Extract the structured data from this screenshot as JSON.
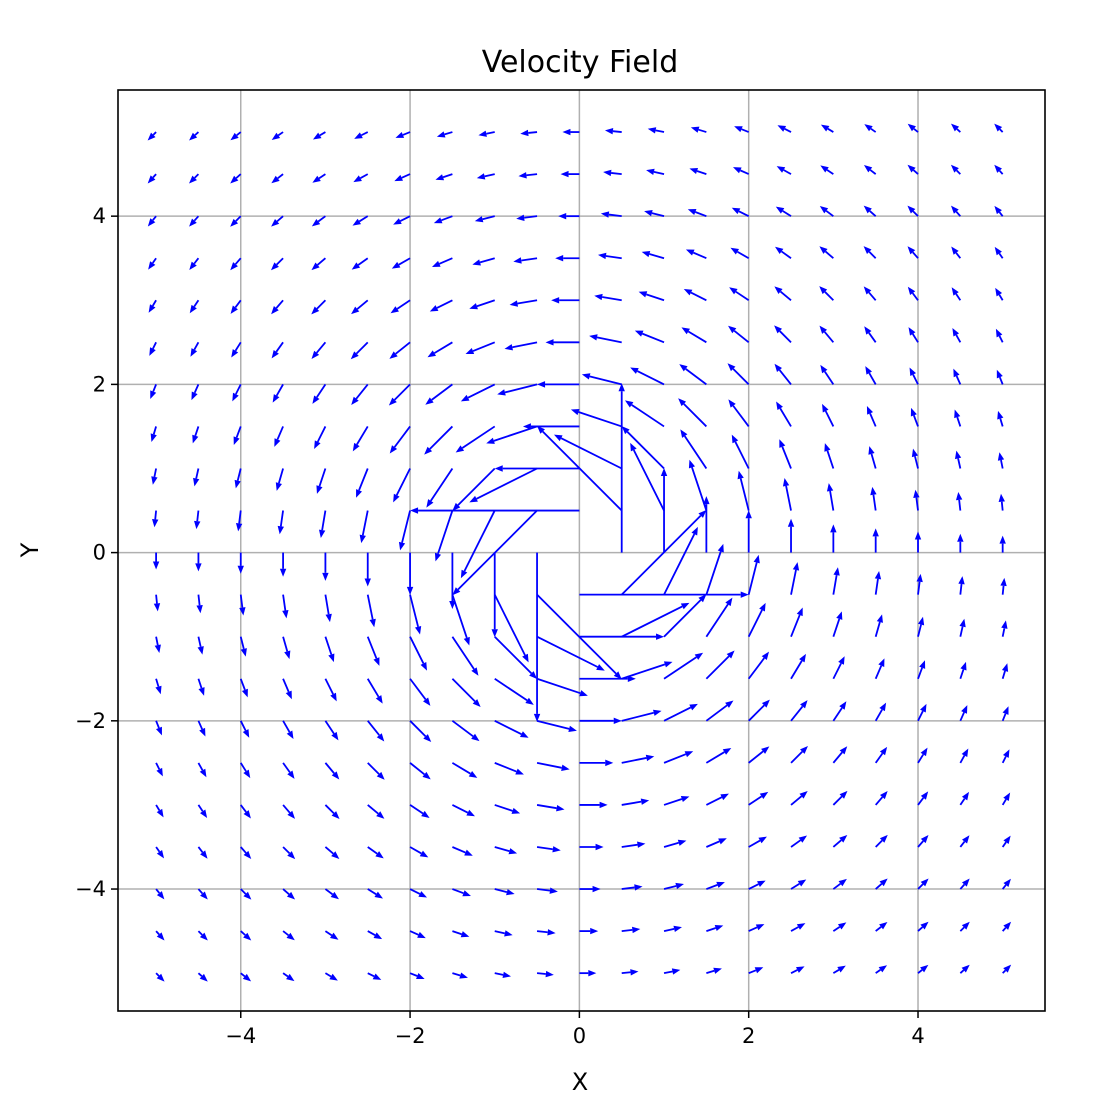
{
  "chart_data": {
    "type": "quiver",
    "title": "Velocity Field",
    "xlabel": "X",
    "ylabel": "Y",
    "xlim": [
      -5.45,
      5.5
    ],
    "ylim": [
      -5.45,
      5.5
    ],
    "xticks": [
      -4,
      -2,
      0,
      2,
      4
    ],
    "yticks": [
      -4,
      -2,
      0,
      2,
      4
    ],
    "xtick_labels": [
      "−4",
      "−2",
      "0",
      "2",
      "4"
    ],
    "ytick_labels": [
      "−4",
      "−2",
      "0",
      "2",
      "4"
    ],
    "grid": true,
    "color": "#0000ff",
    "x_range": [
      -5,
      5
    ],
    "y_range": [
      -5,
      5
    ],
    "step": 0.5,
    "u_formula": "-y / (x^2 + y^2)",
    "v_formula": "x / (x^2 + y^2)",
    "arrow_scale": 1.0
  }
}
